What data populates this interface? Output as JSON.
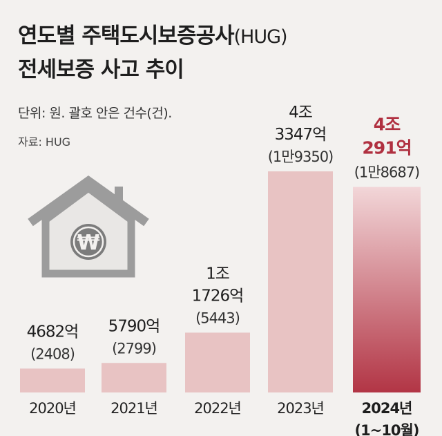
{
  "chart_data": {
    "type": "bar",
    "title_line1": "연도별 주택도시보증공사",
    "title_suffix": "(HUG)",
    "title_line2": "전세보증 사고 추이",
    "unit_note": "단위: 원. 괄호 안은 건수(건).",
    "source": "자료: HUG",
    "categories": [
      "2020년",
      "2021년",
      "2022년",
      "2023년",
      "2024년"
    ],
    "highlight_sub": "(1~10월)",
    "values_eok": [
      4682,
      5790,
      11726,
      43347,
      40291
    ],
    "value_labels": [
      [
        "4682억"
      ],
      [
        "5790억"
      ],
      [
        "1조",
        "1726억"
      ],
      [
        "4조",
        "3347억"
      ],
      [
        "4조",
        "291억"
      ]
    ],
    "counts": [
      "(2408)",
      "(2799)",
      "(5443)",
      "(1만9350)",
      "(1만8687)"
    ],
    "highlight_index": 4,
    "ylim": [
      0,
      43347
    ],
    "colors": {
      "bar": "#e8c3c3",
      "highlight_top": "#f2d6d8",
      "highlight_bottom": "#b23545",
      "highlight_text": "#b03040",
      "house": "#9c9c9c",
      "coin": "#7c7c7c"
    },
    "icon": "house-won-icon"
  }
}
